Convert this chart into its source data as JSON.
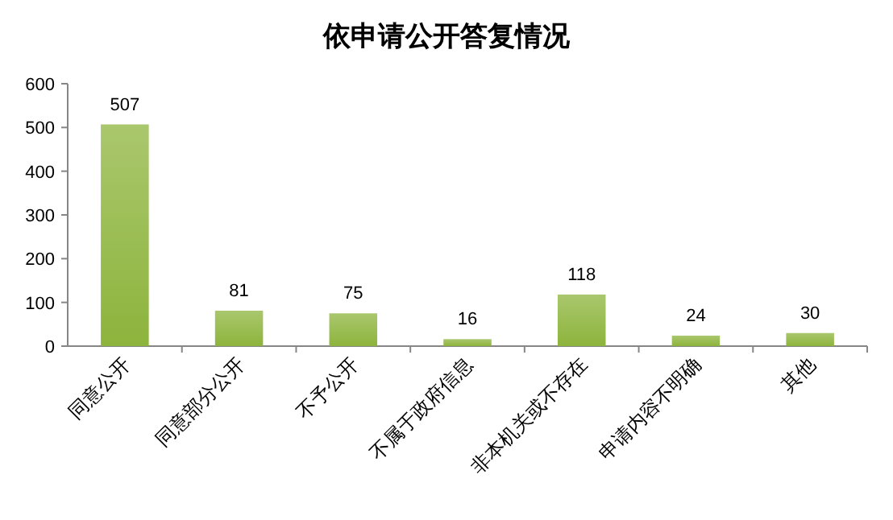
{
  "chart_data": {
    "type": "bar",
    "title": "依申请公开答复情况",
    "categories": [
      "同意公开",
      "同意部分公开",
      "不予公开",
      "不属于政府信息",
      "非本机关或不存在",
      "申请内容不明确",
      "其他"
    ],
    "values": [
      507,
      81,
      75,
      16,
      118,
      24,
      30
    ],
    "color": "#8db43c",
    "ylim": [
      0,
      600
    ],
    "yticks": [
      0,
      100,
      200,
      300,
      400,
      500,
      600
    ],
    "data_labels": true,
    "grid": false
  }
}
